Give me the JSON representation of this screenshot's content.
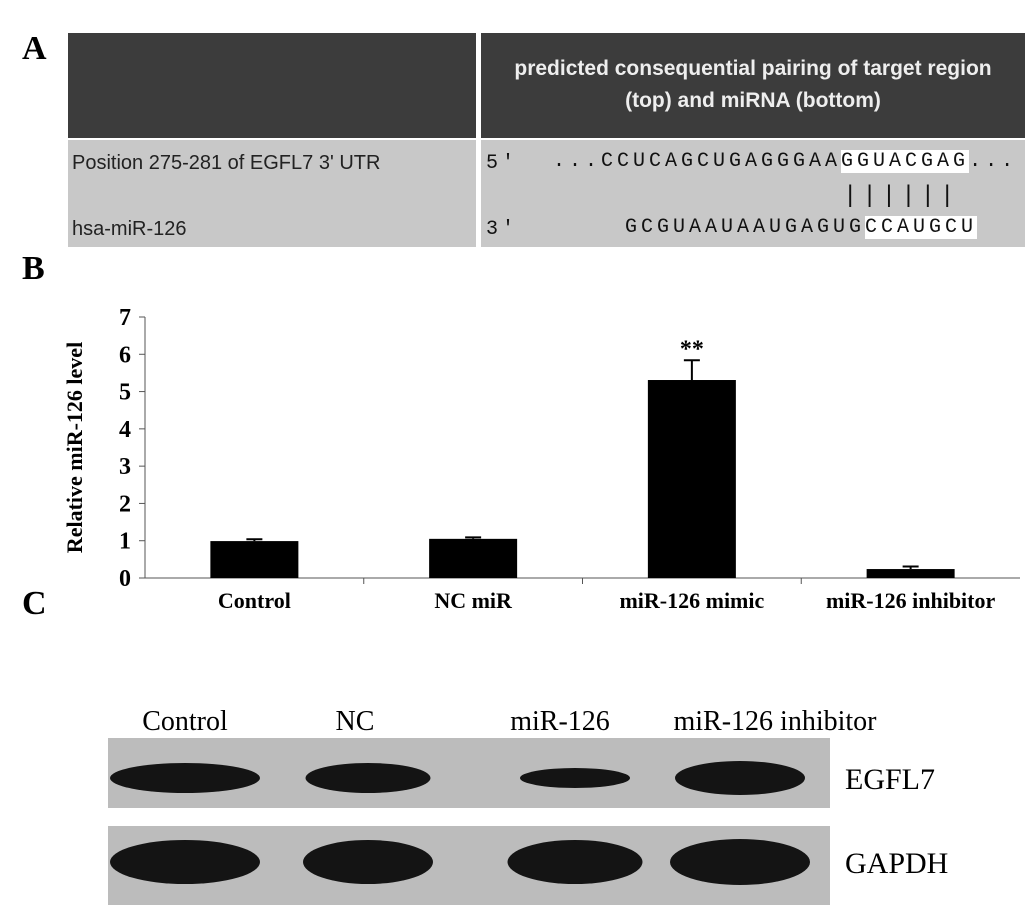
{
  "panel_a": {
    "letter": "A",
    "header": {
      "left": "",
      "right": "predicted consequential pairing of target region (top) and miRNA (bottom)"
    },
    "rows": [
      {
        "label": "Position 275-281 of EGFL7 3' UTR",
        "end": "5'",
        "sequence": [
          "...CCUCAGCUGAGGGAA",
          "GGUACGAG",
          "..."
        ]
      },
      {
        "pairing": "||||||"
      },
      {
        "label": "hsa-miR-126",
        "end": "3'",
        "sequence": [
          "GCGUAAUAAUGAGUG",
          "CCAUGCU"
        ]
      }
    ]
  },
  "panel_b": {
    "letter": "B"
  },
  "chart_data": {
    "type": "bar",
    "y_label": "Relative miR-126 level",
    "categories": [
      "Control",
      "NC miR",
      "miR-126 mimic",
      "miR-126 inhibitor"
    ],
    "values": [
      0.99,
      1.05,
      5.31,
      0.24
    ],
    "errors": [
      0.05,
      0.04,
      0.53,
      0.07
    ],
    "color": "#000000",
    "ylim": [
      0,
      7
    ],
    "yticks": [
      0,
      1,
      2,
      3,
      4,
      5,
      6,
      7
    ],
    "annotations": [
      {
        "category": 2,
        "text": "**"
      }
    ]
  },
  "panel_c": {
    "letter": "C",
    "lanes": [
      "Control",
      "NC",
      "miR-126",
      "miR-126 inhibitor"
    ],
    "blots": [
      "EGFL7",
      "GAPDH"
    ]
  }
}
